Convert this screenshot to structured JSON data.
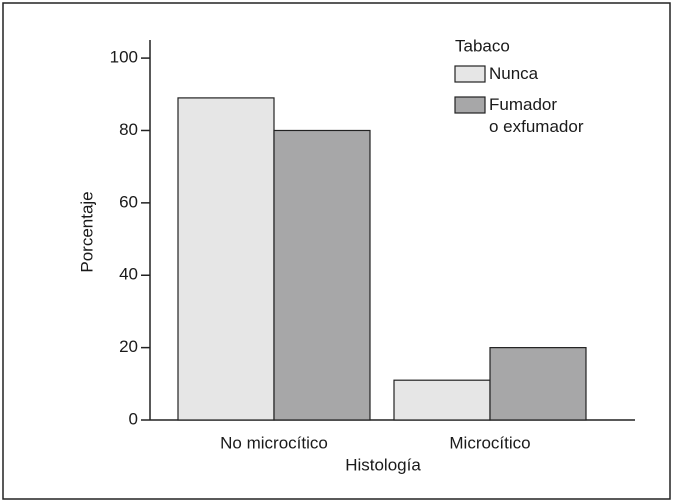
{
  "chart_data": {
    "type": "bar",
    "x_label": "Histología",
    "y_label": "Porcentaje",
    "categories": [
      "No microcítico",
      "Microcítico"
    ],
    "series": [
      {
        "name": "Nunca",
        "color": "#e6e6e6",
        "values": [
          89,
          11
        ]
      },
      {
        "name": "Fumador\no exfumador",
        "color": "#a7a7a8",
        "values": [
          80,
          20
        ]
      }
    ],
    "legend_title": "Tabaco",
    "legend": "top-right",
    "ylim": [
      0,
      105
    ],
    "yticks": [
      0,
      20,
      40,
      60,
      80,
      100
    ],
    "grid": false
  }
}
